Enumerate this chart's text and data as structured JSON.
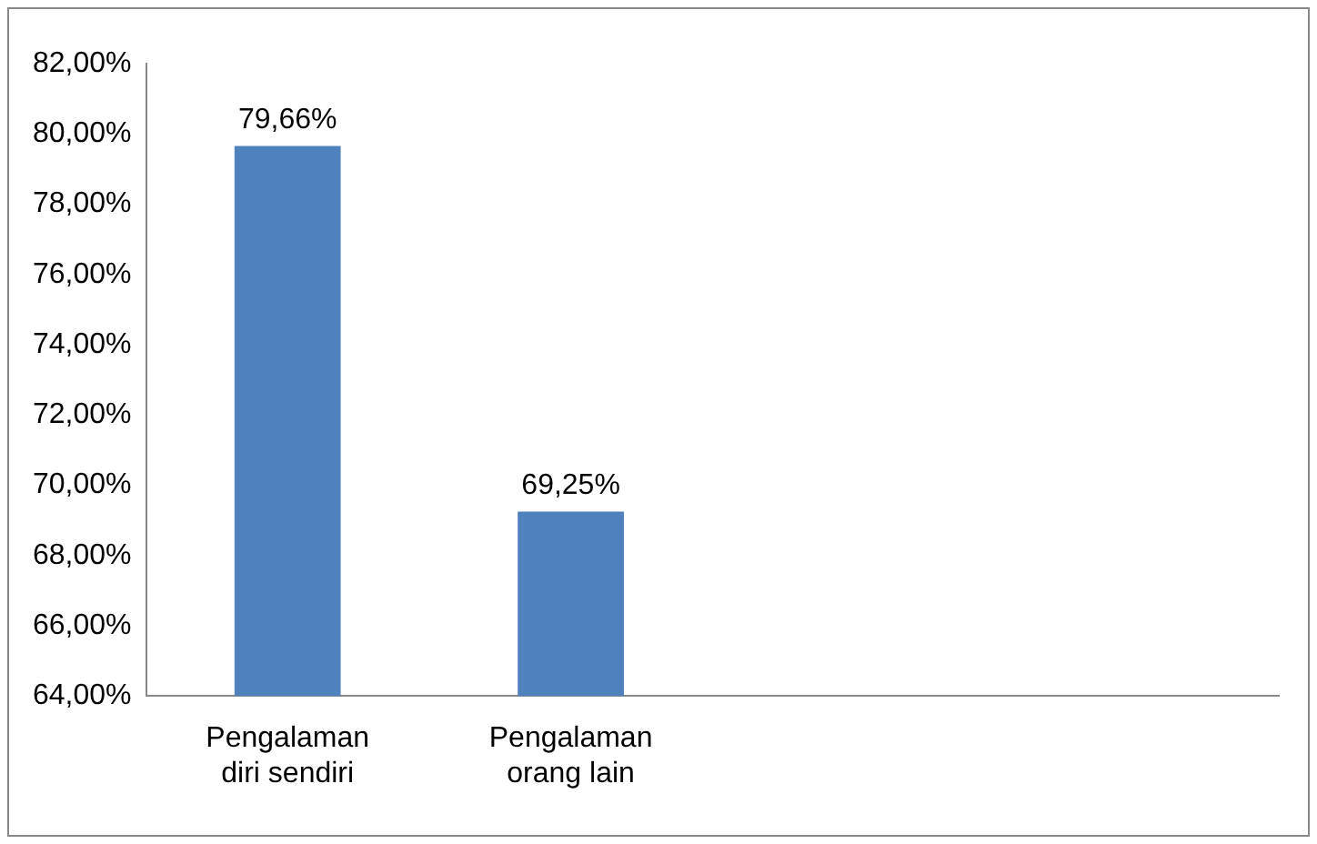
{
  "chart_data": {
    "type": "bar",
    "categories": [
      "Pengalaman diri sendiri",
      "Pengalaman orang lain",
      null,
      null
    ],
    "values": [
      79.66,
      69.25,
      null,
      null
    ],
    "value_labels": [
      "79,66%",
      "69,25%",
      null,
      null
    ],
    "color": "#4f81bd",
    "ylim": [
      64,
      82
    ],
    "yticks": [
      {
        "value": 64,
        "label": "64,00%"
      },
      {
        "value": 66,
        "label": "66,00%"
      },
      {
        "value": 68,
        "label": "68,00%"
      },
      {
        "value": 70,
        "label": "70,00%"
      },
      {
        "value": 72,
        "label": "72,00%"
      },
      {
        "value": 74,
        "label": "74,00%"
      },
      {
        "value": 76,
        "label": "76,00%"
      },
      {
        "value": 78,
        "label": "78,00%"
      },
      {
        "value": 80,
        "label": "80,00%"
      },
      {
        "value": 82,
        "label": "82,00%"
      }
    ],
    "grid": false,
    "legend": false
  }
}
